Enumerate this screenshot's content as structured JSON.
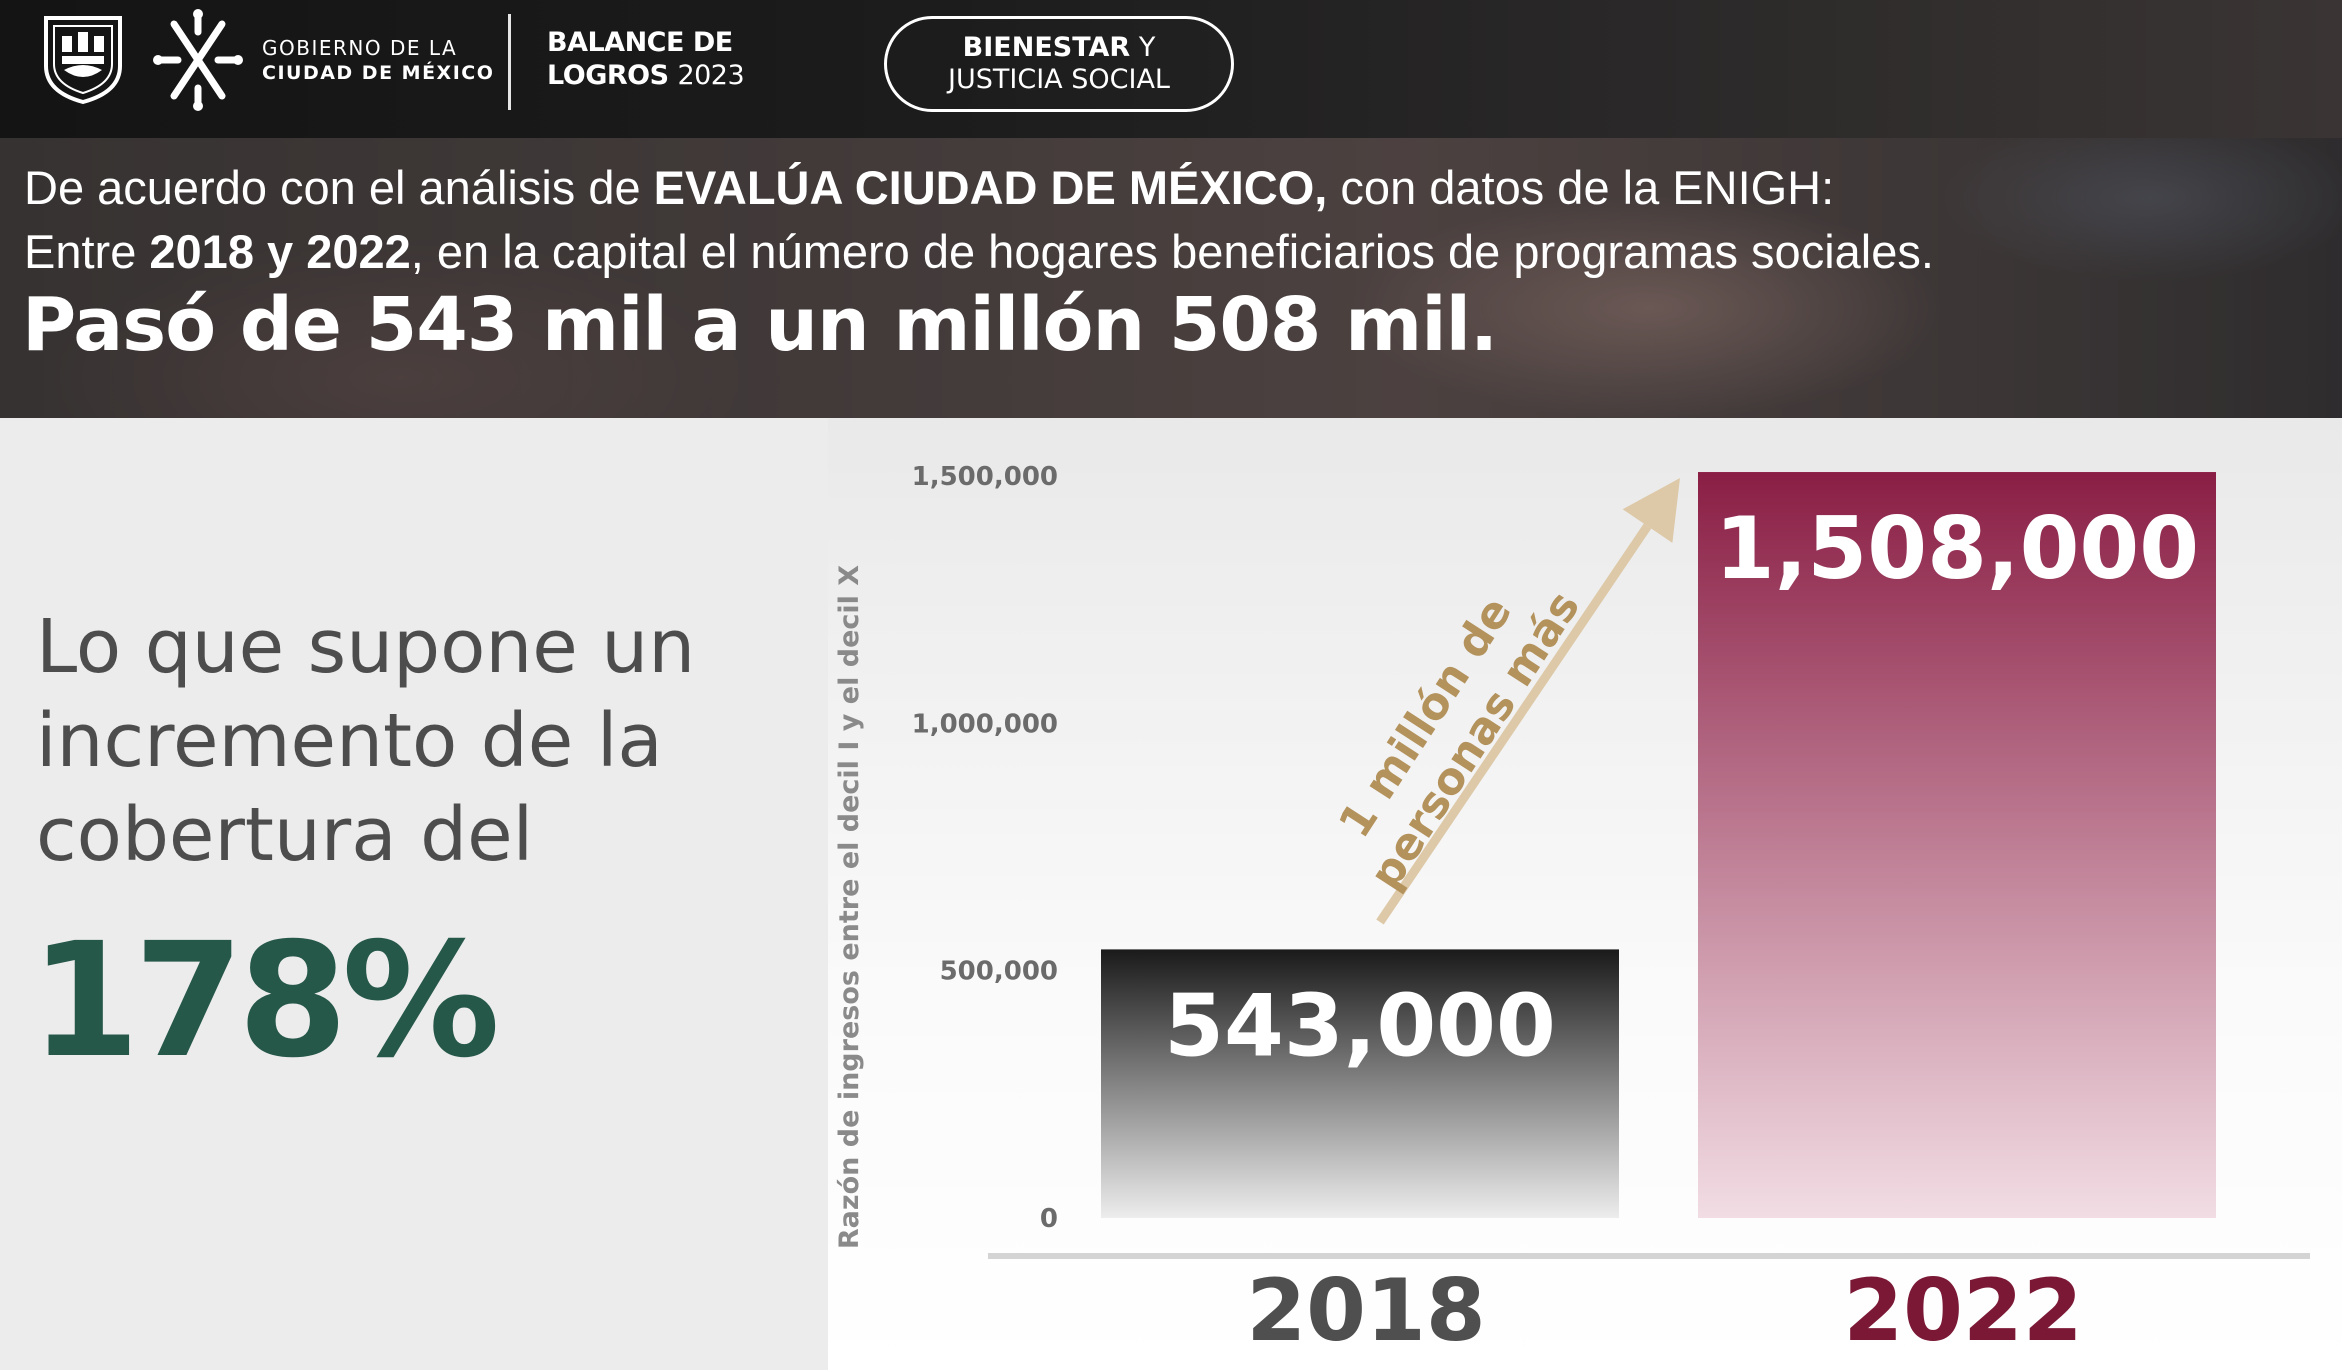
{
  "header": {
    "gov_line1": "GOBIERNO DE LA",
    "gov_line2": "CIUDAD DE MÉXICO",
    "balance_line1": "BALANCE DE",
    "balance_line2_bold": "LOGROS",
    "balance_line2_year": "2023",
    "pill_bold": "BIENESTAR",
    "pill_rest": "Y",
    "pill_line2": "JUSTICIA SOCIAL"
  },
  "banner": {
    "l1_a": "De acuerdo con el análisis de ",
    "l1_b": "EVALÚA CIUDAD DE MÉXICO,",
    "l1_c": " con datos de la ENIGH:",
    "l2_a": "Entre ",
    "l2_b": "2018 y 2022",
    "l2_c": ", en la capital el número de hogares beneficiarios de programas sociales.",
    "headline": "Pasó de 543 mil a un millón 508 mil."
  },
  "statement": {
    "line1": "Lo que supone un",
    "line2": "incremento de la",
    "line3": "cobertura del",
    "percent": "178%"
  },
  "colors": {
    "accent_green": "#26584a",
    "bar_2018_top": "#1a1a1a",
    "bar_2022_top": "#8a1e44",
    "annotation": "#b3925c",
    "label_2018": "#4f4f4f",
    "label_2022": "#7b1836"
  },
  "chart_data": {
    "type": "bar",
    "categories": [
      "2018",
      "2022"
    ],
    "values": [
      543000,
      1508000
    ],
    "value_labels": [
      "543,000",
      "1,508,000"
    ],
    "ylabel": "Razón de ingresos entre el decil I y el decil X",
    "ylim": [
      0,
      1500000
    ],
    "yticks": [
      0,
      500000,
      1000000,
      1500000
    ],
    "ytick_labels": [
      "0",
      "500,000",
      "1,000,000",
      "1,500,000"
    ],
    "annotation_line1": "1 millón de",
    "annotation_line2": "personas más",
    "grid": false,
    "legend": "none"
  }
}
